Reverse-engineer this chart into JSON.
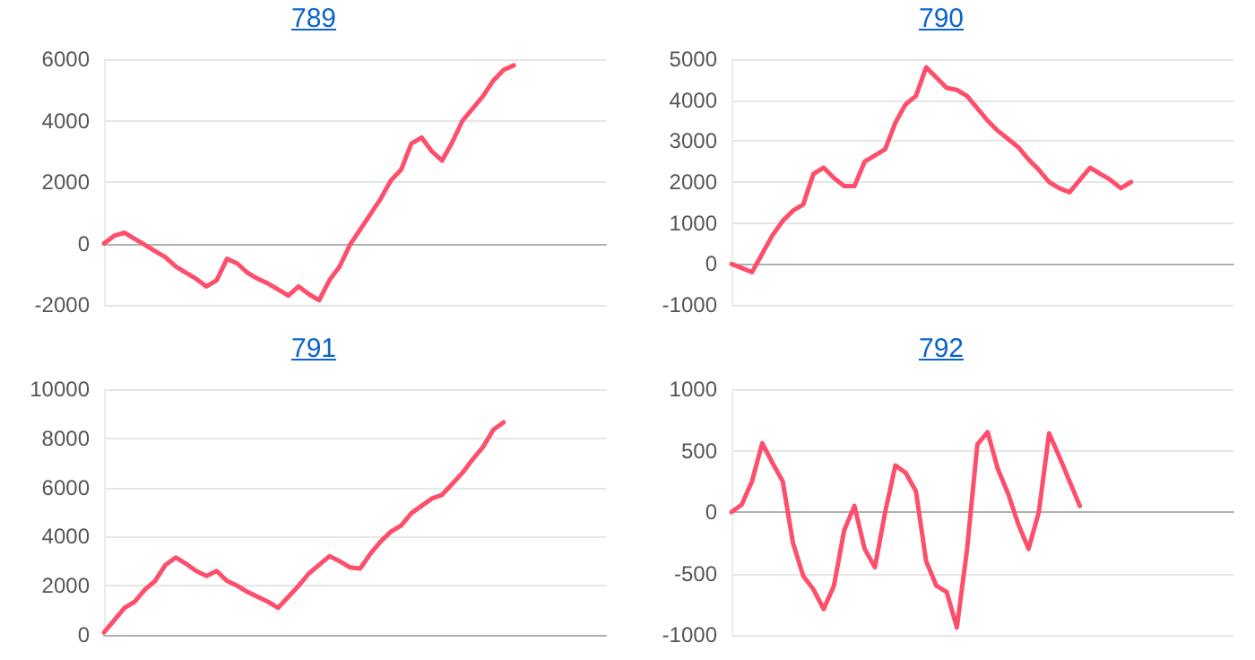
{
  "chart_data": [
    {
      "type": "line",
      "title": "789",
      "categories": [
        null,
        null,
        null,
        null,
        null,
        null,
        null,
        null,
        null,
        null,
        null,
        null,
        null,
        null,
        null,
        null,
        null,
        null,
        null,
        null,
        null,
        null,
        null,
        null,
        null,
        null,
        null,
        null,
        null,
        null,
        null,
        null,
        null,
        null,
        null,
        null,
        null,
        null,
        null,
        null,
        null,
        null,
        null,
        null,
        null,
        null,
        null,
        null,
        null,
        null
      ],
      "series": [
        {
          "color": "#fd4f6c",
          "values": [
            0,
            250,
            350,
            150,
            -50,
            -250,
            -450,
            -750,
            -950,
            -1150,
            -1400,
            -1200,
            -500,
            -650,
            -950,
            -1150,
            -1300,
            -1500,
            -1700,
            -1400,
            -1650,
            -1850,
            -1200,
            -750,
            -50,
            450,
            950,
            1450,
            2050,
            2400,
            3250,
            3450,
            3000,
            2700,
            3300,
            4000,
            4400,
            4800,
            5300,
            5650,
            5800,
            null,
            null,
            null,
            null,
            null,
            null,
            null,
            null,
            null
          ]
        }
      ],
      "ylim": [
        -2000,
        6000
      ],
      "yticks": [
        -2000,
        0,
        2000,
        4000,
        6000
      ],
      "grid": "y",
      "tick_labels": "y",
      "line_style": "solid"
    },
    {
      "type": "line",
      "title": "790",
      "categories": [
        null,
        null,
        null,
        null,
        null,
        null,
        null,
        null,
        null,
        null,
        null,
        null,
        null,
        null,
        null,
        null,
        null,
        null,
        null,
        null,
        null,
        null,
        null,
        null,
        null,
        null,
        null,
        null,
        null,
        null,
        null,
        null,
        null,
        null,
        null,
        null,
        null,
        null,
        null,
        null,
        null,
        null,
        null,
        null,
        null,
        null,
        null,
        null,
        null,
        null
      ],
      "series": [
        {
          "color": "#fd4f6c",
          "values": [
            0,
            -100,
            -200,
            250,
            700,
            1050,
            1300,
            1450,
            2200,
            2350,
            2100,
            1900,
            1900,
            2500,
            2650,
            2800,
            3450,
            3900,
            4100,
            4800,
            4550,
            4300,
            4250,
            4100,
            3800,
            3500,
            3250,
            3050,
            2850,
            2550,
            2300,
            2000,
            1850,
            1750,
            2050,
            2350,
            2200,
            2050,
            1850,
            2000,
            null,
            null,
            null,
            null,
            null,
            null,
            null,
            null,
            null,
            null
          ]
        }
      ],
      "ylim": [
        -1000,
        5000
      ],
      "yticks": [
        -1000,
        0,
        1000,
        2000,
        3000,
        4000,
        5000
      ],
      "grid": "y",
      "tick_labels": "y",
      "line_style": "solid"
    },
    {
      "type": "line",
      "title": "791",
      "categories": [
        null,
        null,
        null,
        null,
        null,
        null,
        null,
        null,
        null,
        null,
        null,
        null,
        null,
        null,
        null,
        null,
        null,
        null,
        null,
        null,
        null,
        null,
        null,
        null,
        null,
        null,
        null,
        null,
        null,
        null,
        null,
        null,
        null,
        null,
        null,
        null,
        null,
        null,
        null,
        null,
        null,
        null,
        null,
        null,
        null,
        null,
        null,
        null,
        null,
        null
      ],
      "series": [
        {
          "color": "#fd4f6c",
          "values": [
            100,
            600,
            1100,
            1350,
            1850,
            2200,
            2850,
            3150,
            2900,
            2600,
            2400,
            2600,
            2200,
            2000,
            1750,
            1550,
            1350,
            1100,
            1550,
            2000,
            2500,
            2850,
            3200,
            3000,
            2750,
            2700,
            3300,
            3800,
            4200,
            4450,
            4950,
            5250,
            5550,
            5700,
            6150,
            6600,
            7150,
            7650,
            8350,
            8650,
            null,
            null,
            null,
            null,
            null,
            null,
            null,
            null,
            null,
            null
          ]
        }
      ],
      "ylim": [
        0,
        10000
      ],
      "yticks": [
        0,
        2000,
        4000,
        6000,
        8000,
        10000
      ],
      "grid": "y",
      "tick_labels": "y",
      "line_style": "solid"
    },
    {
      "type": "line",
      "title": "792",
      "categories": [
        null,
        null,
        null,
        null,
        null,
        null,
        null,
        null,
        null,
        null,
        null,
        null,
        null,
        null,
        null,
        null,
        null,
        null,
        null,
        null,
        null,
        null,
        null,
        null,
        null,
        null,
        null,
        null,
        null,
        null,
        null,
        null,
        null,
        null,
        null,
        null,
        null,
        null,
        null,
        null,
        null,
        null,
        null,
        null,
        null,
        null,
        null,
        null,
        null,
        null
      ],
      "series": [
        {
          "color": "#fd4f6c",
          "values": [
            0,
            60,
            250,
            560,
            400,
            250,
            -250,
            -520,
            -630,
            -790,
            -600,
            -150,
            50,
            -300,
            -450,
            0,
            380,
            320,
            170,
            -400,
            -600,
            -650,
            -940,
            -300,
            550,
            650,
            350,
            150,
            -100,
            -300,
            0,
            640,
            450,
            250,
            50,
            null,
            null,
            null,
            null,
            null,
            null,
            null,
            null,
            null,
            null,
            null,
            null,
            null,
            null,
            null
          ]
        }
      ],
      "ylim": [
        -1000,
        1000
      ],
      "yticks": [
        -1000,
        -500,
        0,
        500,
        1000
      ],
      "grid": "y",
      "tick_labels": "y",
      "line_style": "solid"
    }
  ]
}
